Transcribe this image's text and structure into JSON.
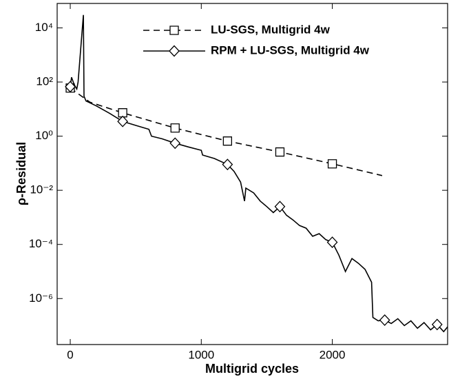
{
  "chart_data": {
    "type": "line",
    "xlabel": "Multigrid cycles",
    "ylabel": "ρ-Residual",
    "xlim": [
      -100,
      2880
    ],
    "xticks": [
      0,
      1000,
      2000
    ],
    "ylim": [
      2e-08,
      80000
    ],
    "log_y": true,
    "yticks": [
      {
        "value": 1e-06,
        "label": "10⁻⁶"
      },
      {
        "value": 0.0001,
        "label": "10⁻⁴"
      },
      {
        "value": 0.01,
        "label": "10⁻²"
      },
      {
        "value": 1,
        "label": "10⁰"
      },
      {
        "value": 100,
        "label": "10²"
      },
      {
        "value": 10000,
        "label": "10⁴"
      }
    ],
    "legend": "upper center",
    "series": [
      {
        "name": "LU-SGS, Multigrid 4w",
        "color": "#000000",
        "dash": "dashed",
        "marker": "square",
        "marker_every": 400,
        "x": [
          0,
          150,
          400,
          800,
          1200,
          1600,
          2000,
          2380
        ],
        "values": [
          60,
          18,
          7.3,
          2.0,
          0.66,
          0.26,
          0.095,
          0.035
        ]
      },
      {
        "name": "RPM + LU-SGS, Multigrid 4w",
        "color": "#000000",
        "dash": "solid",
        "marker": "diamond",
        "marker_every": 400,
        "x": [
          0,
          10,
          30,
          50,
          60,
          100,
          105,
          120,
          200,
          300,
          400,
          500,
          600,
          620,
          700,
          800,
          900,
          1000,
          1010,
          1100,
          1200,
          1250,
          1300,
          1330,
          1340,
          1400,
          1450,
          1500,
          1550,
          1600,
          1650,
          1700,
          1750,
          1800,
          1850,
          1900,
          1950,
          2000,
          2050,
          2100,
          2150,
          2200,
          2250,
          2300,
          2310,
          2350,
          2400,
          2450,
          2500,
          2550,
          2600,
          2650,
          2700,
          2750,
          2800,
          2850,
          2880
        ],
        "values": [
          67,
          150,
          80,
          55,
          100,
          30000,
          30,
          20,
          13,
          7,
          3.5,
          2.5,
          1.8,
          1.0,
          0.8,
          0.55,
          0.4,
          0.3,
          0.2,
          0.15,
          0.09,
          0.05,
          0.02,
          0.004,
          0.012,
          0.008,
          0.004,
          0.0025,
          0.0015,
          0.0025,
          0.0012,
          0.0008,
          0.0005,
          0.0004,
          0.0002,
          0.00025,
          0.00015,
          0.00012,
          4e-05,
          1e-05,
          3e-05,
          2e-05,
          1.2e-05,
          4e-06,
          2e-07,
          1.5e-07,
          1.6e-07,
          1.2e-07,
          1.8e-07,
          1e-07,
          1.5e-07,
          8e-08,
          1.3e-07,
          7e-08,
          1.1e-07,
          6e-08,
          9e-08
        ]
      }
    ]
  }
}
